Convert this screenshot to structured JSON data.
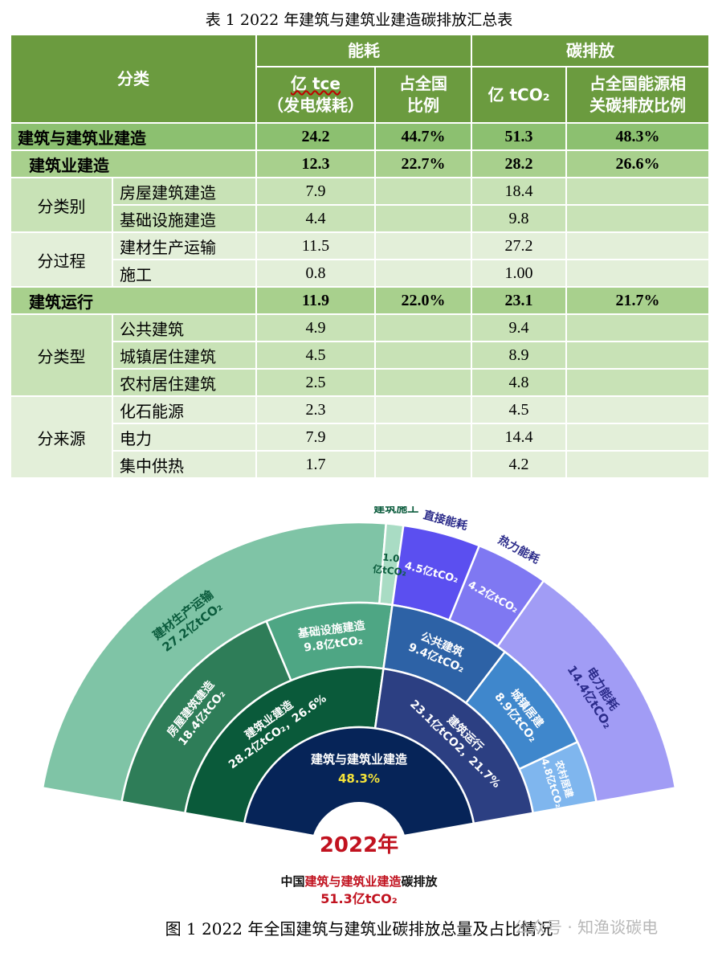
{
  "table": {
    "caption": "表 1 2022 年建筑与建筑业建造碳排放汇总表",
    "headers": {
      "category": "分类",
      "energy": "能耗",
      "carbon": "碳排放",
      "energy_unit_line1": "亿 tce",
      "energy_unit_line2": "（发电煤耗）",
      "energy_share_line1": "占全国",
      "energy_share_line2": "比例",
      "carbon_unit": "亿 tCO₂",
      "carbon_share_line1": "占全国能源相",
      "carbon_share_line2": "关碳排放比例"
    },
    "top_row": {
      "label": "建筑与建筑业建造",
      "energy": "24.2",
      "energy_share": "44.7%",
      "carbon": "51.3",
      "carbon_share": "48.3%"
    },
    "construction": {
      "label": "建筑业建造",
      "energy": "12.3",
      "energy_share": "22.7%",
      "carbon": "28.2",
      "carbon_share": "26.6%",
      "by_type": {
        "group": "分类别",
        "rows": [
          {
            "label": "房屋建筑建造",
            "energy": "7.9",
            "carbon": "18.4"
          },
          {
            "label": "基础设施建造",
            "energy": "4.4",
            "carbon": "9.8"
          }
        ]
      },
      "by_process": {
        "group": "分过程",
        "rows": [
          {
            "label": "建材生产运输",
            "energy": "11.5",
            "carbon": "27.2"
          },
          {
            "label": "施工",
            "energy": "0.8",
            "carbon": "1.00"
          }
        ]
      }
    },
    "operation": {
      "label": "建筑运行",
      "energy": "11.9",
      "energy_share": "22.0%",
      "carbon": "23.1",
      "carbon_share": "21.7%",
      "by_type": {
        "group": "分类型",
        "rows": [
          {
            "label": "公共建筑",
            "energy": "4.9",
            "carbon": "9.4"
          },
          {
            "label": "城镇居住建筑",
            "energy": "4.5",
            "carbon": "8.9"
          },
          {
            "label": "农村居住建筑",
            "energy": "2.5",
            "carbon": "4.8"
          }
        ]
      },
      "by_source": {
        "group": "分来源",
        "rows": [
          {
            "label": "化石能源",
            "energy": "2.3",
            "carbon": "4.5"
          },
          {
            "label": "电力",
            "energy": "7.9",
            "carbon": "14.4"
          },
          {
            "label": "集中供热",
            "energy": "1.7",
            "carbon": "4.2"
          }
        ]
      }
    }
  },
  "chart_data": {
    "type": "sunburst",
    "unit": "亿tCO₂",
    "center": {
      "year": "2022年",
      "subtitle": "建筑与建筑业建造",
      "share": "48.3%"
    },
    "bottom_label": {
      "prefix": "中国",
      "highlight": "建筑与建筑业建造",
      "suffix": "碳排放",
      "total": "51.3亿tCO₂"
    },
    "rings": {
      "inner": [
        {
          "name": "建筑业建造",
          "value": 28.2,
          "label": "28.2亿tCO₂，26.6%",
          "color": "#0a5a3a"
        },
        {
          "name": "建筑运行",
          "value": 23.1,
          "label": "23.1亿tCO2，21.7%",
          "color": "#2c3f82"
        }
      ],
      "middle": [
        {
          "name": "房屋建筑建造",
          "value": 18.4,
          "label": "18.4亿tCO₂",
          "color": "#2e7d58"
        },
        {
          "name": "基础设施建造",
          "value": 9.8,
          "label": "9.8亿tCO₂",
          "color": "#4ea684"
        },
        {
          "name": "公共建筑",
          "value": 9.4,
          "label": "9.4亿tCO₂",
          "color": "#2d62a6"
        },
        {
          "name": "城镇居建",
          "value": 8.9,
          "label": "8.9亿tCO₂",
          "color": "#3f87cc"
        },
        {
          "name": "农村居建",
          "value": 4.8,
          "label": "4.8亿tCO₂",
          "color": "#7fb6ee"
        }
      ],
      "outer": [
        {
          "name": "建材生产运输",
          "value": 27.2,
          "label": "27.2亿tCO₂",
          "color": "#7fc4a6"
        },
        {
          "name": "建筑施工",
          "value": 1.0,
          "label": "1.0亿tCO₂",
          "color": "#a9dcc4"
        },
        {
          "name": "直接能耗",
          "value": 4.5,
          "label": "4.5亿tCO₂",
          "color": "#5b4ff0"
        },
        {
          "name": "热力能耗",
          "value": 4.2,
          "label": "4.2亿tCO₂",
          "color": "#7f78f2"
        },
        {
          "name": "电力能耗",
          "value": 14.4,
          "label": "14.4亿tCO₂",
          "color": "#a19cf5"
        }
      ]
    }
  },
  "figure_caption": "图 1 2022 年全国建筑与建筑业碳排放总量及占比情况",
  "watermark": "公众号 · 知渔谈碳电"
}
